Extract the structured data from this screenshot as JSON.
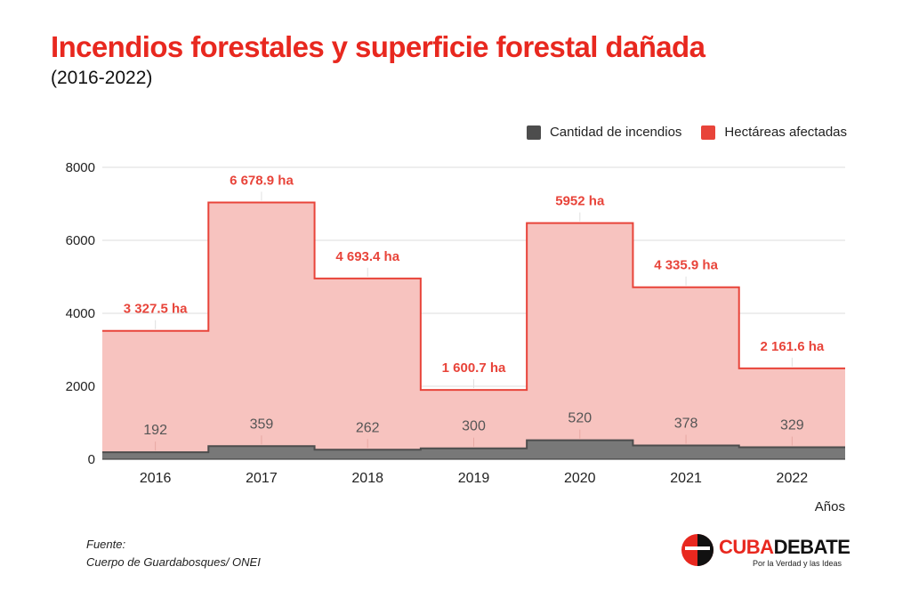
{
  "title": "Incendios forestales y superficie forestal dañada",
  "subtitle": "(2016-2022)",
  "legend": [
    {
      "label": "Cantidad de incendios",
      "color": "#4d4d4d"
    },
    {
      "label": "Hectáreas afectadas",
      "color": "#e8443a"
    }
  ],
  "source": {
    "line1": "Fuente:",
    "line2": "Cuerpo de Guardabosques/ ONEI"
  },
  "logo": {
    "name_part1": "CUBA",
    "name_part2": "DEBATE",
    "tagline": "Por la Verdad y las Ideas"
  },
  "chart_data": {
    "type": "area",
    "categories": [
      "2016",
      "2017",
      "2018",
      "2019",
      "2020",
      "2021",
      "2022"
    ],
    "xlabel": "Años",
    "ylabel": "",
    "ylim": [
      0,
      8000
    ],
    "yticks": [
      0,
      2000,
      4000,
      6000,
      8000
    ],
    "grid": true,
    "legend_position": "top-right",
    "step": true,
    "stacked": true,
    "series": [
      {
        "name": "Cantidad de incendios",
        "values": [
          192,
          359,
          262,
          300,
          520,
          378,
          329
        ],
        "labels": [
          "192",
          "359",
          "262",
          "300",
          "520",
          "378",
          "329"
        ],
        "color": "#4d4d4d",
        "fill": "#787878"
      },
      {
        "name": "Hectáreas afectadas",
        "values": [
          3327.5,
          6678.9,
          4693.4,
          1600.7,
          5952,
          4335.9,
          2161.6
        ],
        "labels": [
          "3 327.5 ha",
          "6 678.9 ha",
          "4 693.4 ha",
          "1 600.7 ha",
          "5952 ha",
          "4 335.9 ha",
          "2 161.6 ha"
        ],
        "color": "#e8443a",
        "fill": "#f7c3bf"
      }
    ]
  }
}
